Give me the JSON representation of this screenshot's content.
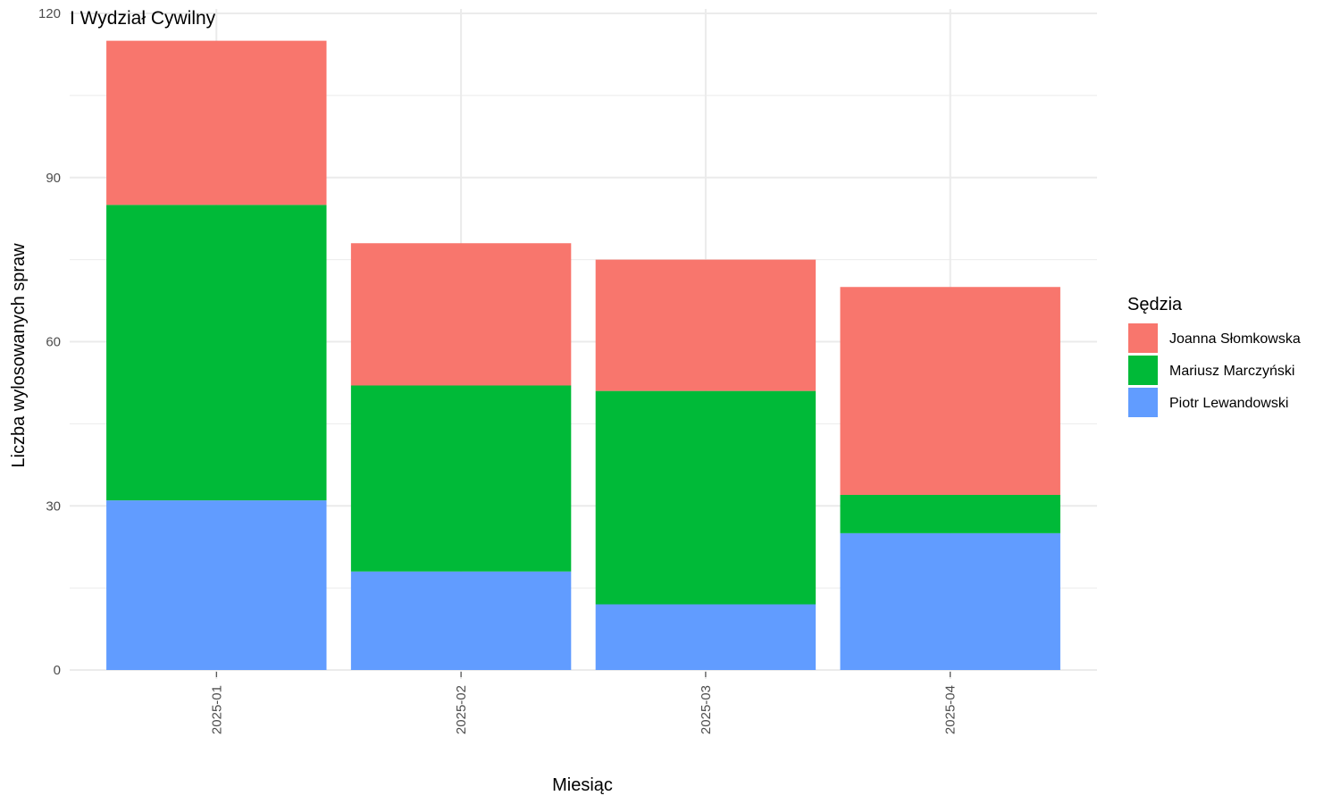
{
  "chart_data": {
    "type": "bar",
    "stacked": true,
    "title": "I Wydział Cywilny",
    "xlabel": "Miesiąc",
    "ylabel": "Liczba wylosowanych spraw",
    "categories": [
      "2025-01",
      "2025-02",
      "2025-03",
      "2025-04"
    ],
    "ylim": [
      0,
      120
    ],
    "yticks": [
      0,
      30,
      60,
      90,
      120
    ],
    "grid": true,
    "x_tick_rotation": "vertical",
    "legend": {
      "title": "Sędzia",
      "position": "right"
    },
    "series": [
      {
        "name": "Piotr Lewandowski",
        "color": "#619CFF",
        "values": [
          31,
          18,
          12,
          25
        ]
      },
      {
        "name": "Mariusz Marczyński",
        "color": "#00BA38",
        "values": [
          54,
          34,
          39,
          7
        ]
      },
      {
        "name": "Joanna Słomkowska",
        "color": "#F8766D",
        "values": [
          30,
          26,
          24,
          38
        ]
      }
    ],
    "legend_order": [
      "Joanna Słomkowska",
      "Mariusz Marczyński",
      "Piotr Lewandowski"
    ]
  }
}
